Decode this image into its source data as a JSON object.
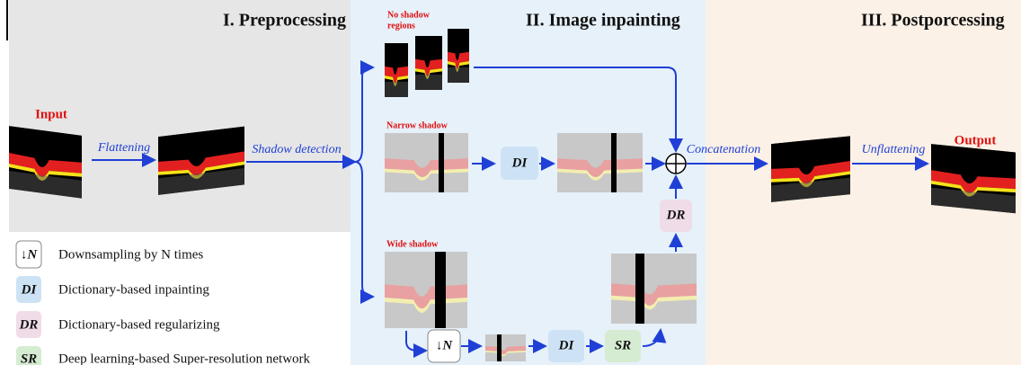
{
  "sections": [
    "I. Preprocessing",
    "II. Image inpainting",
    "III. Postporcessing"
  ],
  "labels": {
    "input": "Input",
    "output": "Output"
  },
  "steps": [
    "Flattening",
    "Shadow detection",
    "Concatenation",
    "Unflattening"
  ],
  "branches": [
    [
      "No shadow",
      "regions"
    ],
    "Narrow shadow",
    "Wide shadow"
  ],
  "boxes": {
    "down": "↓N",
    "di": "DI",
    "dr": "DR",
    "sr": "SR"
  },
  "legend": [
    "Downsampling by N times",
    "Dictionary-based inpainting",
    "Dictionary-based regularizing",
    "Deep learning-based Super-resolution network"
  ]
}
